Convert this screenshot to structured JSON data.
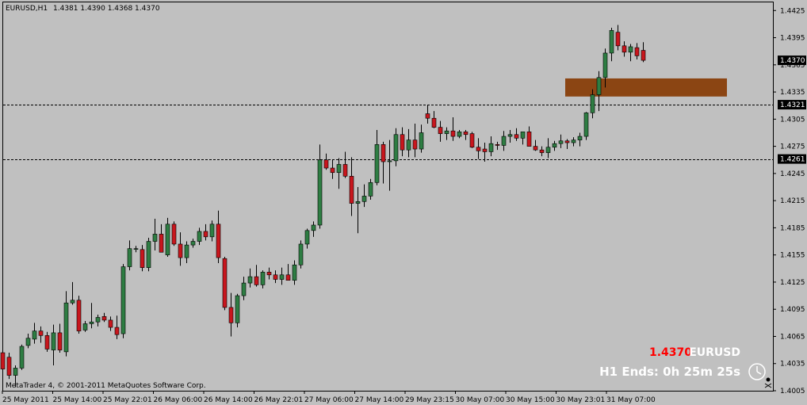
{
  "header": {
    "symbol": "EURUSD,H1",
    "ohlc": "1.4381 1.4390 1.4368 1.4370"
  },
  "copyright": "MetaTrader 4, © 2001-2011 MetaQuotes Software Corp.",
  "info": {
    "price": "1.4370",
    "symbol": "EURUSD",
    "timer": "H1 Ends: 0h 25m 25s"
  },
  "colors": {
    "background": "#c0c0c0",
    "bull": "#2e7d43",
    "bear": "#c8161d",
    "zone": "#8b4513",
    "price_marker_bg": "#000000",
    "level_marker_bg": "#000000"
  },
  "chart_data": {
    "type": "candlestick",
    "ylim": [
      1.4005,
      1.4434
    ],
    "yticks": [
      "1.4425",
      "1.4395",
      "1.4365",
      "1.4335",
      "1.4305",
      "1.4275",
      "1.4245",
      "1.4215",
      "1.4185",
      "1.4155",
      "1.4125",
      "1.4095",
      "1.4065",
      "1.4035",
      "1.4005"
    ],
    "xticks": [
      "25 May 2011",
      "25 May 14:00",
      "25 May 22:01",
      "26 May 06:00",
      "26 May 14:00",
      "26 May 22:01",
      "27 May 06:00",
      "27 May 14:00",
      "29 May 23:15",
      "30 May 07:00",
      "30 May 15:00",
      "30 May 23:01",
      "31 May 07:00"
    ],
    "levels": [
      {
        "price": 1.4321,
        "label": "1.4321",
        "style": "dashed"
      },
      {
        "price": 1.4261,
        "label": "1.4261",
        "style": "dashed"
      }
    ],
    "current_price": {
      "price": 1.437,
      "label": "1.4370"
    },
    "zone": {
      "from_index": 89,
      "to_index": 114,
      "top": 1.435,
      "bottom": 1.433
    },
    "candles": [
      [
        1.4047,
        1.4051,
        1.4024,
        1.4029
      ],
      [
        1.4042,
        1.4047,
        1.4018,
        1.4022
      ],
      [
        1.4022,
        1.4033,
        1.4009,
        1.403
      ],
      [
        1.403,
        1.4056,
        1.4028,
        1.4054
      ],
      [
        1.4055,
        1.4068,
        1.4052,
        1.4063
      ],
      [
        1.4062,
        1.408,
        1.4057,
        1.4071
      ],
      [
        1.4071,
        1.4076,
        1.4058,
        1.4066
      ],
      [
        1.4066,
        1.407,
        1.4048,
        1.4051
      ],
      [
        1.405,
        1.4078,
        1.4033,
        1.4069
      ],
      [
        1.4069,
        1.4079,
        1.4047,
        1.405
      ],
      [
        1.4048,
        1.4115,
        1.4043,
        1.4102
      ],
      [
        1.4102,
        1.4125,
        1.41,
        1.4105
      ],
      [
        1.4105,
        1.411,
        1.4068,
        1.4071
      ],
      [
        1.4072,
        1.4082,
        1.407,
        1.4079
      ],
      [
        1.4079,
        1.4102,
        1.4074,
        1.4081
      ],
      [
        1.4081,
        1.4089,
        1.4076,
        1.4086
      ],
      [
        1.4087,
        1.4091,
        1.4081,
        1.4083
      ],
      [
        1.4083,
        1.4087,
        1.4071,
        1.4075
      ],
      [
        1.4075,
        1.4088,
        1.4062,
        1.4067
      ],
      [
        1.4068,
        1.4145,
        1.4063,
        1.4142
      ],
      [
        1.4142,
        1.4171,
        1.4138,
        1.4162
      ],
      [
        1.4162,
        1.4165,
        1.4158,
        1.4162
      ],
      [
        1.4161,
        1.4166,
        1.4137,
        1.4141
      ],
      [
        1.4141,
        1.4174,
        1.4137,
        1.417
      ],
      [
        1.417,
        1.4195,
        1.416,
        1.4178
      ],
      [
        1.4178,
        1.4189,
        1.4158,
        1.4158
      ],
      [
        1.4155,
        1.4196,
        1.4153,
        1.4189
      ],
      [
        1.4189,
        1.4192,
        1.4165,
        1.4167
      ],
      [
        1.4167,
        1.418,
        1.4143,
        1.4152
      ],
      [
        1.4152,
        1.417,
        1.4146,
        1.4166
      ],
      [
        1.4166,
        1.4173,
        1.4163,
        1.417
      ],
      [
        1.417,
        1.4185,
        1.4166,
        1.4181
      ],
      [
        1.4181,
        1.4189,
        1.4171,
        1.4175
      ],
      [
        1.4175,
        1.4193,
        1.417,
        1.4189
      ],
      [
        1.4189,
        1.4204,
        1.4146,
        1.4152
      ],
      [
        1.4151,
        1.4153,
        1.4094,
        1.4097
      ],
      [
        1.4097,
        1.4113,
        1.4065,
        1.408
      ],
      [
        1.408,
        1.4112,
        1.4075,
        1.411
      ],
      [
        1.411,
        1.4131,
        1.4105,
        1.4124
      ],
      [
        1.4124,
        1.414,
        1.4119,
        1.4131
      ],
      [
        1.4131,
        1.4144,
        1.412,
        1.4122
      ],
      [
        1.4122,
        1.4138,
        1.4118,
        1.4136
      ],
      [
        1.4136,
        1.4141,
        1.4128,
        1.4133
      ],
      [
        1.4133,
        1.4138,
        1.4124,
        1.4128
      ],
      [
        1.4128,
        1.4141,
        1.4122,
        1.4133
      ],
      [
        1.4133,
        1.4145,
        1.4129,
        1.4127
      ],
      [
        1.4127,
        1.4149,
        1.4122,
        1.4144
      ],
      [
        1.4144,
        1.4171,
        1.414,
        1.4167
      ],
      [
        1.4167,
        1.4184,
        1.4162,
        1.4182
      ],
      [
        1.4182,
        1.4192,
        1.4175,
        1.4188
      ],
      [
        1.4188,
        1.4277,
        1.4184,
        1.426
      ],
      [
        1.426,
        1.4267,
        1.4249,
        1.4251
      ],
      [
        1.4251,
        1.426,
        1.4239,
        1.4246
      ],
      [
        1.4246,
        1.4262,
        1.4228,
        1.4255
      ],
      [
        1.4255,
        1.4269,
        1.424,
        1.4242
      ],
      [
        1.4242,
        1.4263,
        1.4198,
        1.4212
      ],
      [
        1.4212,
        1.423,
        1.4179,
        1.4214
      ],
      [
        1.4214,
        1.4233,
        1.4208,
        1.422
      ],
      [
        1.422,
        1.4239,
        1.4216,
        1.4235
      ],
      [
        1.4235,
        1.4293,
        1.4232,
        1.4277
      ],
      [
        1.4277,
        1.428,
        1.4234,
        1.4258
      ],
      [
        1.4258,
        1.4282,
        1.4226,
        1.4259
      ],
      [
        1.4259,
        1.4295,
        1.4253,
        1.4288
      ],
      [
        1.4288,
        1.4296,
        1.4264,
        1.4271
      ],
      [
        1.4271,
        1.4294,
        1.4263,
        1.4282
      ],
      [
        1.4282,
        1.43,
        1.4263,
        1.4272
      ],
      [
        1.4272,
        1.4299,
        1.4268,
        1.429
      ],
      [
        1.4311,
        1.4321,
        1.43,
        1.4306
      ],
      [
        1.4306,
        1.4314,
        1.4295,
        1.4296
      ],
      [
        1.4296,
        1.4303,
        1.428,
        1.4289
      ],
      [
        1.4289,
        1.4296,
        1.4282,
        1.4292
      ],
      [
        1.4292,
        1.4307,
        1.4281,
        1.4286
      ],
      [
        1.4286,
        1.4293,
        1.4284,
        1.4291
      ],
      [
        1.4291,
        1.4293,
        1.4282,
        1.4288
      ],
      [
        1.4289,
        1.4291,
        1.4273,
        1.4274
      ],
      [
        1.4274,
        1.4284,
        1.4261,
        1.427
      ],
      [
        1.4272,
        1.4279,
        1.4258,
        1.4269
      ],
      [
        1.4269,
        1.4286,
        1.4264,
        1.4278
      ],
      [
        1.4277,
        1.428,
        1.4271,
        1.4276
      ],
      [
        1.4276,
        1.4292,
        1.427,
        1.4286
      ],
      [
        1.4286,
        1.4293,
        1.4279,
        1.4288
      ],
      [
        1.4288,
        1.4295,
        1.4281,
        1.4284
      ],
      [
        1.4284,
        1.429,
        1.4277,
        1.4291
      ],
      [
        1.4291,
        1.4297,
        1.4279,
        1.4275
      ],
      [
        1.4275,
        1.4282,
        1.427,
        1.4271
      ],
      [
        1.4271,
        1.4275,
        1.4264,
        1.4268
      ],
      [
        1.4268,
        1.4284,
        1.4262,
        1.4274
      ],
      [
        1.4274,
        1.4281,
        1.427,
        1.4278
      ],
      [
        1.4278,
        1.4288,
        1.4273,
        1.4281
      ],
      [
        1.4281,
        1.4283,
        1.4272,
        1.4279
      ],
      [
        1.4279,
        1.4285,
        1.4275,
        1.4282
      ],
      [
        1.4282,
        1.429,
        1.4275,
        1.4286
      ],
      [
        1.4286,
        1.4313,
        1.4282,
        1.4312
      ],
      [
        1.4312,
        1.4338,
        1.4306,
        1.4332
      ],
      [
        1.4332,
        1.4358,
        1.4314,
        1.4351
      ],
      [
        1.4351,
        1.4383,
        1.434,
        1.4378
      ],
      [
        1.4378,
        1.4406,
        1.4369,
        1.4403
      ],
      [
        1.4401,
        1.4409,
        1.4381,
        1.4386
      ],
      [
        1.4386,
        1.4391,
        1.4374,
        1.4379
      ],
      [
        1.4379,
        1.4388,
        1.4369,
        1.4385
      ],
      [
        1.4384,
        1.4389,
        1.4371,
        1.4375
      ],
      [
        1.4381,
        1.439,
        1.4368,
        1.437
      ]
    ]
  }
}
